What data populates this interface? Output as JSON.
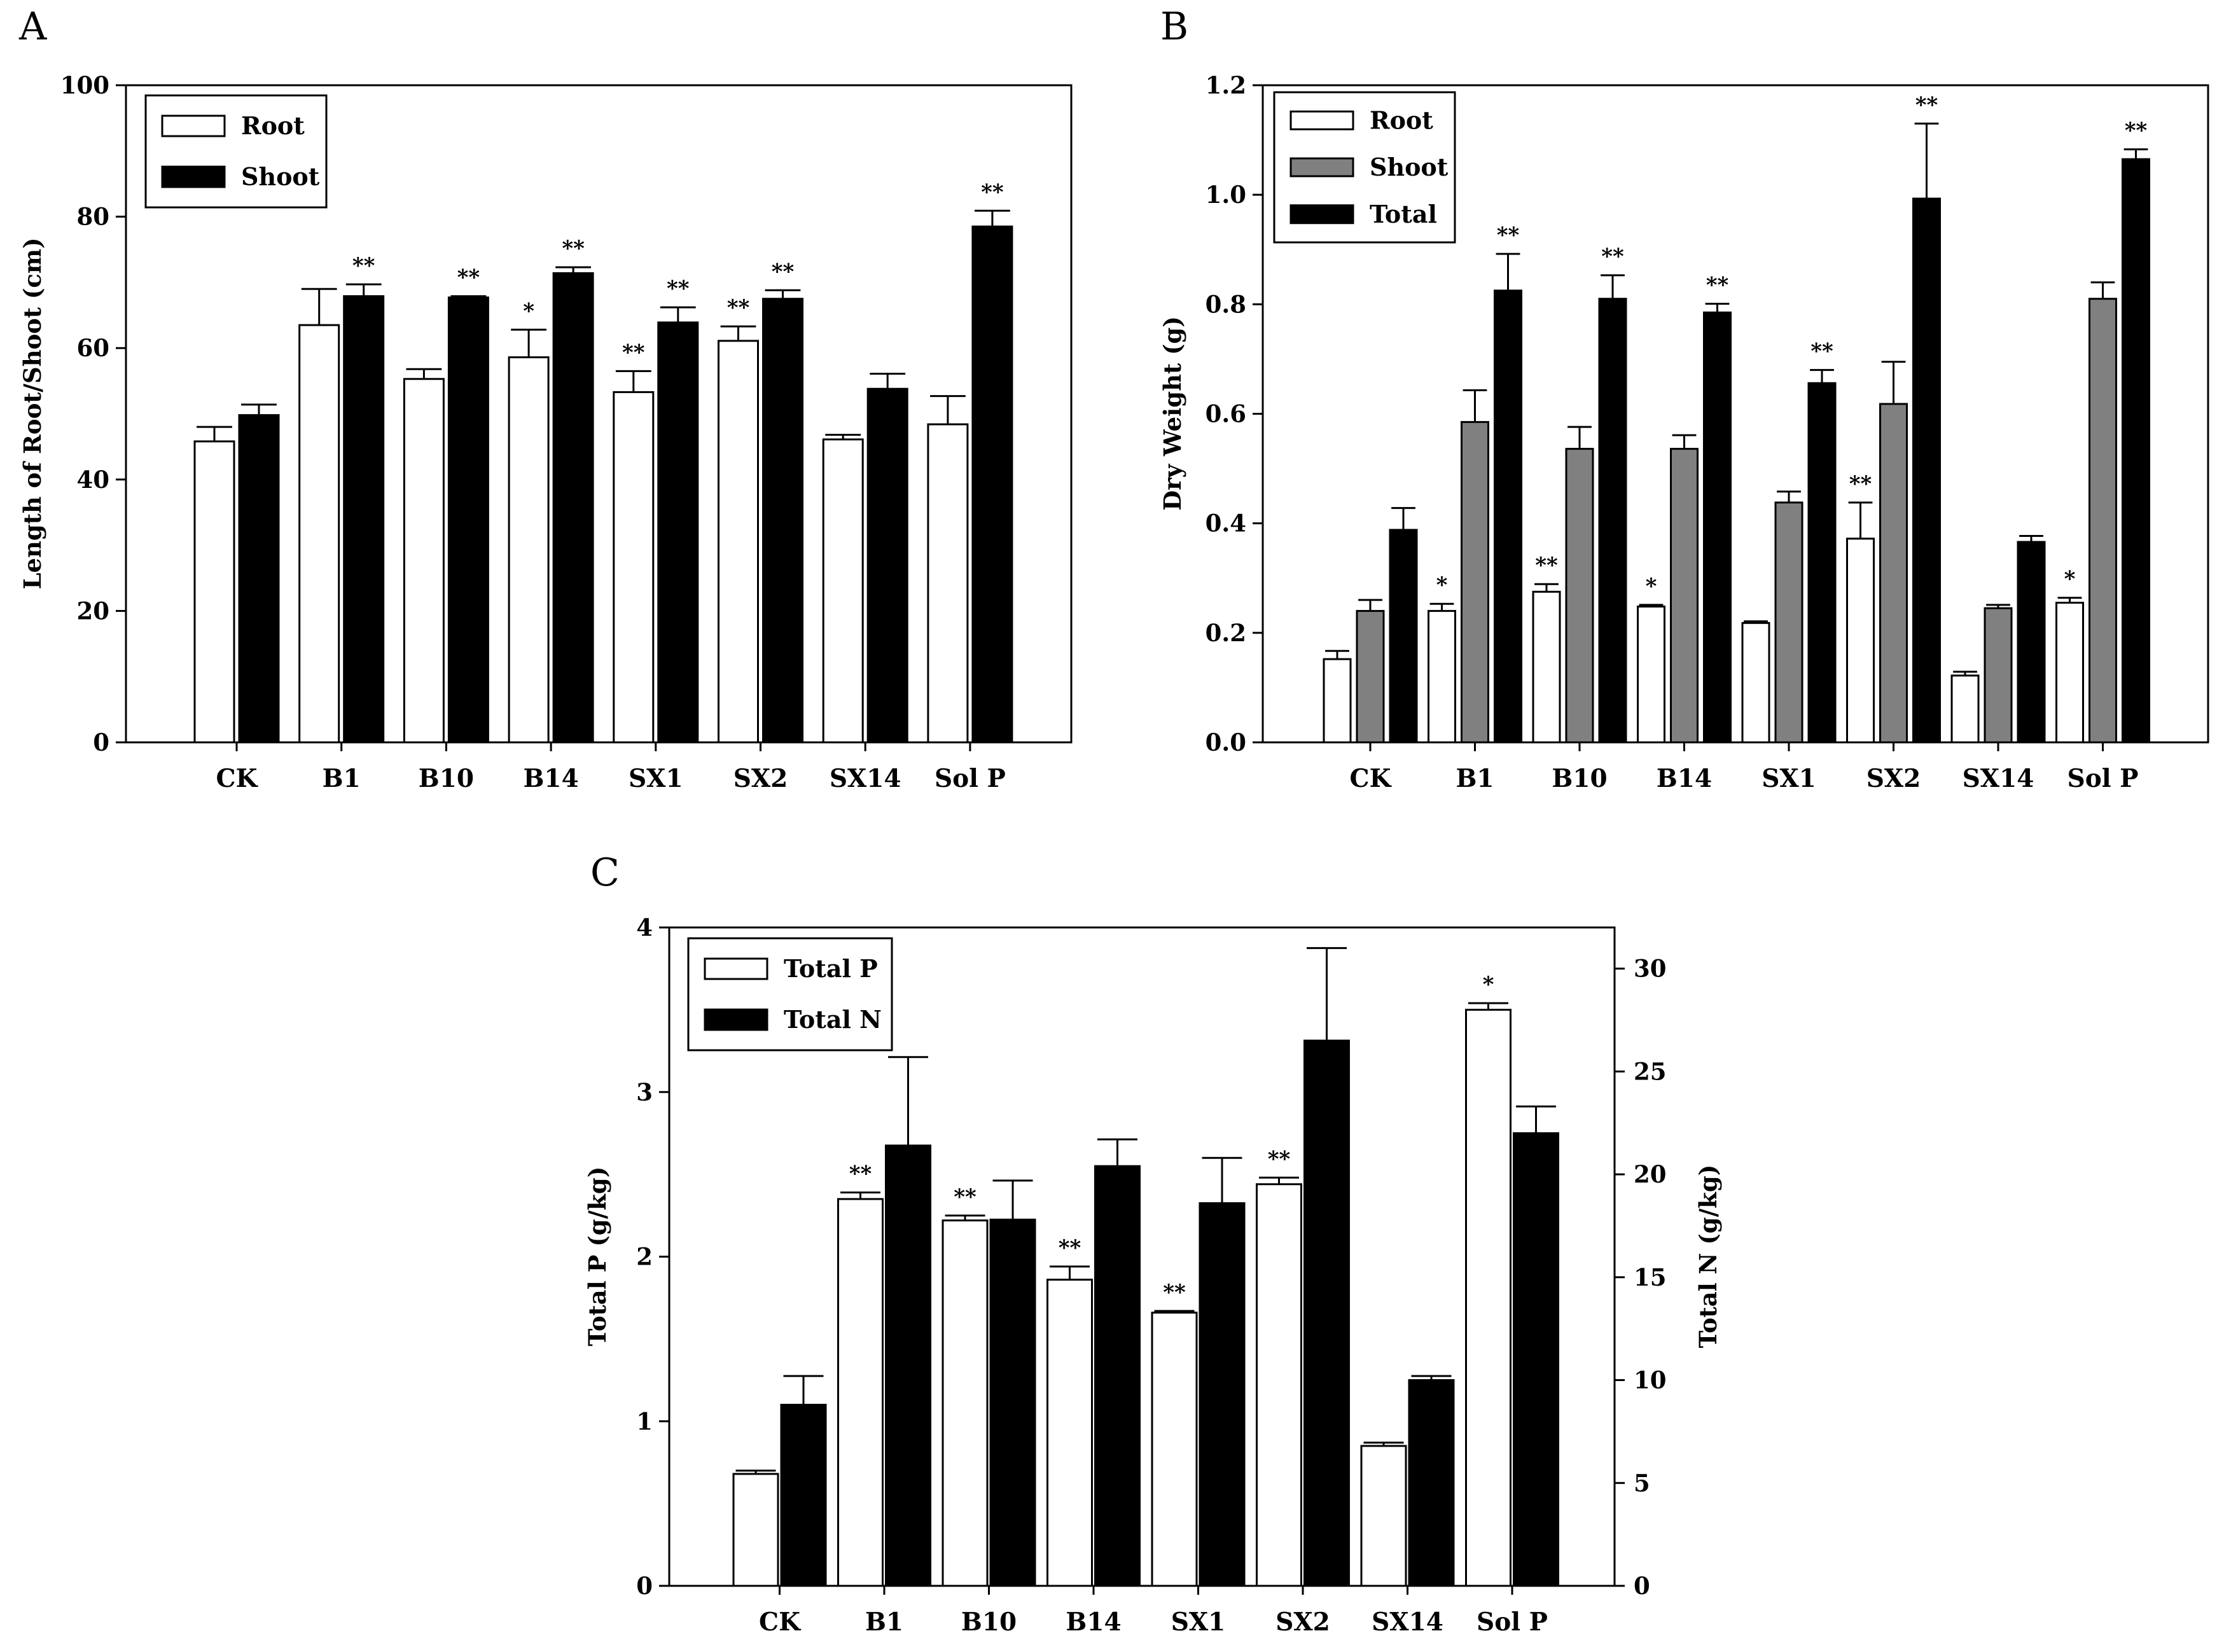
{
  "colors": {
    "root": "#ffffff",
    "shoot_gray": "#808080",
    "black": "#000000"
  },
  "chart_data": [
    {
      "panel": "A",
      "type": "bar",
      "xlabel": "",
      "ylabel": "Length of Root/Shoot (cm)",
      "ylim": [
        0,
        100
      ],
      "yticks": [
        0,
        20,
        40,
        60,
        80,
        100
      ],
      "ytick_labels": [
        "0",
        "20",
        "40",
        "60",
        "80",
        "100"
      ],
      "legend_position": "top-left",
      "categories": [
        "CK",
        "B1",
        "B10",
        "B14",
        "SX1",
        "SX2",
        "SX14",
        "Sol P"
      ],
      "series": [
        {
          "name": "Root",
          "fill": "#ffffff",
          "values": [
            45.8,
            63.5,
            55.3,
            58.6,
            53.3,
            61.1,
            46.1,
            48.4
          ],
          "errors": [
            2.2,
            5.5,
            1.5,
            4.2,
            3.2,
            2.2,
            0.7,
            4.3
          ],
          "sig": [
            "",
            "",
            "",
            "*",
            "**",
            "**",
            "",
            ""
          ]
        },
        {
          "name": "Shoot",
          "fill": "#000000",
          "values": [
            49.8,
            67.9,
            67.7,
            71.4,
            63.9,
            67.5,
            53.8,
            78.5
          ],
          "errors": [
            1.6,
            1.8,
            0.2,
            0.9,
            2.3,
            1.3,
            2.3,
            2.4
          ],
          "sig": [
            "",
            "**",
            "**",
            "**",
            "**",
            "**",
            "",
            "**"
          ]
        }
      ]
    },
    {
      "panel": "B",
      "type": "bar",
      "xlabel": "",
      "ylabel": "Dry Weight (g)",
      "ylim": [
        0,
        1.2
      ],
      "yticks": [
        0,
        0.2,
        0.4,
        0.6,
        0.8,
        1.0,
        1.2
      ],
      "ytick_labels": [
        "0.0",
        "0.2",
        "0.4",
        "0.6",
        "0.8",
        "1.0",
        "1.2"
      ],
      "legend_position": "top-left",
      "categories": [
        "CK",
        "B1",
        "B10",
        "B14",
        "SX1",
        "SX2",
        "SX14",
        "Sol P"
      ],
      "series": [
        {
          "name": "Root",
          "fill": "#ffffff",
          "values": [
            0.152,
            0.24,
            0.275,
            0.248,
            0.218,
            0.372,
            0.122,
            0.255
          ],
          "errors": [
            0.015,
            0.013,
            0.014,
            0.003,
            0.003,
            0.066,
            0.007,
            0.009
          ],
          "sig": [
            "",
            "*",
            "**",
            "*",
            "",
            "**",
            "",
            "*"
          ]
        },
        {
          "name": "Shoot",
          "fill": "#808080",
          "values": [
            0.24,
            0.585,
            0.536,
            0.536,
            0.438,
            0.618,
            0.245,
            0.81
          ],
          "errors": [
            0.02,
            0.058,
            0.04,
            0.025,
            0.02,
            0.077,
            0.006,
            0.03
          ],
          "sig": [
            "",
            "",
            "",
            "",
            "",
            "",
            "",
            ""
          ]
        },
        {
          "name": "Total",
          "fill": "#000000",
          "values": [
            0.388,
            0.825,
            0.81,
            0.785,
            0.656,
            0.993,
            0.366,
            1.065
          ],
          "errors": [
            0.04,
            0.067,
            0.043,
            0.016,
            0.024,
            0.137,
            0.011,
            0.018
          ],
          "sig": [
            "",
            "**",
            "**",
            "**",
            "**",
            "**",
            "",
            "**"
          ]
        }
      ]
    },
    {
      "panel": "C",
      "type": "bar",
      "xlabel": "",
      "ylabel": "Total P (g/kg)",
      "ylabel_right": "Total N (g/kg)",
      "ylim": [
        0,
        4
      ],
      "ylim_right": [
        0,
        32
      ],
      "yticks": [
        0,
        1,
        2,
        3,
        4
      ],
      "ytick_labels": [
        "0",
        "1",
        "2",
        "3",
        "4"
      ],
      "yticks_right": [
        0,
        5,
        10,
        15,
        20,
        25,
        30
      ],
      "ytick_labels_right": [
        "0",
        "5",
        "10",
        "15",
        "20",
        "25",
        "30"
      ],
      "legend_position": "top-left",
      "categories": [
        "CK",
        "B1",
        "B10",
        "B14",
        "SX1",
        "SX2",
        "SX14",
        "Sol P"
      ],
      "series": [
        {
          "name": "Total P",
          "fill": "#ffffff",
          "axis": "left",
          "values": [
            0.68,
            2.35,
            2.22,
            1.86,
            1.66,
            2.44,
            0.85,
            3.5
          ],
          "errors": [
            0.02,
            0.04,
            0.03,
            0.08,
            0.01,
            0.04,
            0.02,
            0.04
          ],
          "sig": [
            "",
            "**",
            "**",
            "**",
            "**",
            "**",
            "",
            "*"
          ]
        },
        {
          "name": "Total N",
          "fill": "#000000",
          "axis": "right",
          "values": [
            8.8,
            21.4,
            17.8,
            20.4,
            18.6,
            26.5,
            10.0,
            22.0
          ],
          "errors": [
            1.4,
            4.3,
            1.9,
            1.3,
            2.2,
            4.5,
            0.2,
            1.3
          ],
          "sig": [
            "",
            "",
            "",
            "",
            "",
            "",
            "",
            ""
          ]
        }
      ]
    }
  ]
}
